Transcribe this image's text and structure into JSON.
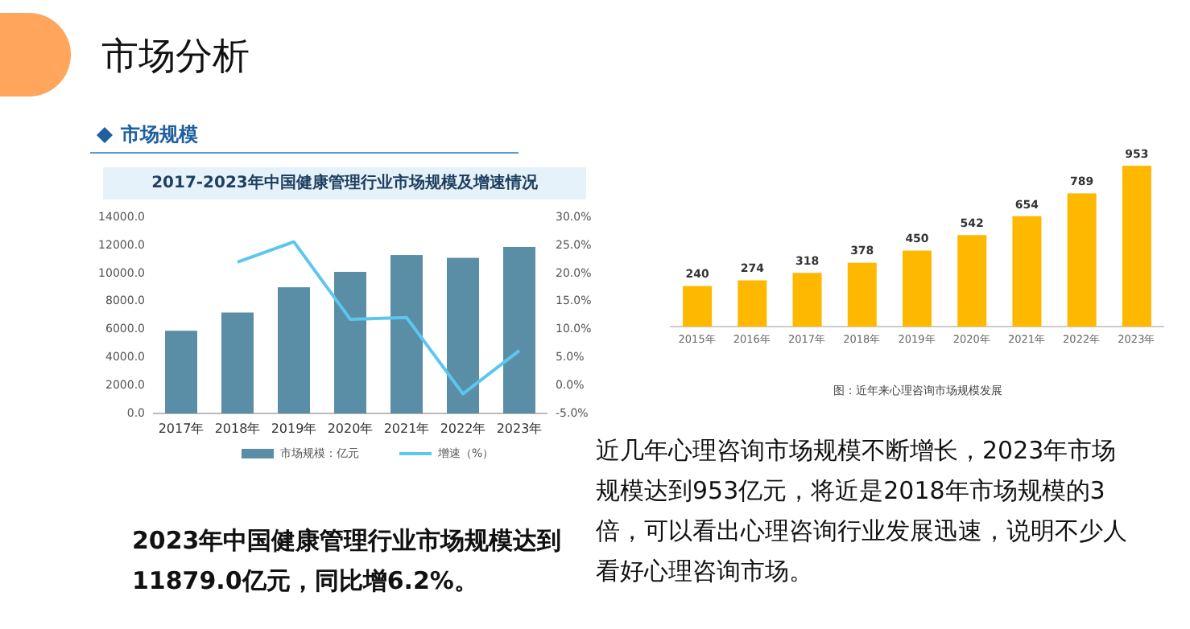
{
  "chart_data": [
    {
      "type": "other",
      "title": "市场分析",
      "annotations": [
        "近几年心理咨询市场规模不断增长，2023年市场规模达到953亿元，将近是2018年市场规模的3倍，可以看出心理咨询行业发展迅速，说明不少人看好心理咨询市场。",
        "2023年中国健康管理行业市场规模达到11879.0亿元，同比增6.2%。"
      ]
    },
    {
      "type": "bar",
      "subtitle": "市场规模",
      "title": "2017-2023年中国健康管理行业市场规模及增速情况",
      "categories": [
        "2017年",
        "2018年",
        "2019年",
        "2020年",
        "2021年",
        "2022年",
        "2023年"
      ],
      "series": [
        {
          "name": "市场规模：亿元",
          "type": "bar",
          "color": "#5a8ea6",
          "values": [
            5900,
            7200,
            9000,
            10100,
            11300,
            11100,
            11879
          ]
        },
        {
          "name": "增速（%）",
          "type": "line",
          "axis": "y2",
          "color": "#5cc6ef",
          "values": [
            null,
            22.0,
            25.6,
            11.8,
            12.1,
            -1.5,
            6.2
          ]
        }
      ],
      "ylim": [
        0,
        14000
      ],
      "yticks": [
        {
          "value": 0,
          "label": "0.0"
        },
        {
          "value": 2000,
          "label": "2000.0"
        },
        {
          "value": 4000,
          "label": "4000.0"
        },
        {
          "value": 6000,
          "label": "6000.0"
        },
        {
          "value": 8000,
          "label": "8000.0"
        },
        {
          "value": 10000,
          "label": "10000.0"
        },
        {
          "value": 12000,
          "label": "12000.0"
        },
        {
          "value": 14000,
          "label": "14000.0"
        }
      ],
      "y2lim": [
        -5,
        30
      ],
      "y2ticks": [
        {
          "value": -5,
          "label": "-5.0%"
        },
        {
          "value": 0,
          "label": "0.0%"
        },
        {
          "value": 5,
          "label": "5.0%"
        },
        {
          "value": 10,
          "label": "10.0%"
        },
        {
          "value": 15,
          "label": "15.0%"
        },
        {
          "value": 20,
          "label": "20.0%"
        },
        {
          "value": 25,
          "label": "25.0%"
        },
        {
          "value": 30,
          "label": "30.0%"
        }
      ],
      "legend": "bottom"
    },
    {
      "type": "bar",
      "categories": [
        "2015年",
        "2016年",
        "2017年",
        "2018年",
        "2019年",
        "2020年",
        "2021年",
        "2022年",
        "2023年"
      ],
      "values": [
        240,
        274,
        318,
        378,
        450,
        542,
        654,
        789,
        953
      ],
      "color": "#ffb800",
      "data_labels": true,
      "annotations": [
        "图：近年来心理咨询市场规模发展"
      ]
    }
  ]
}
